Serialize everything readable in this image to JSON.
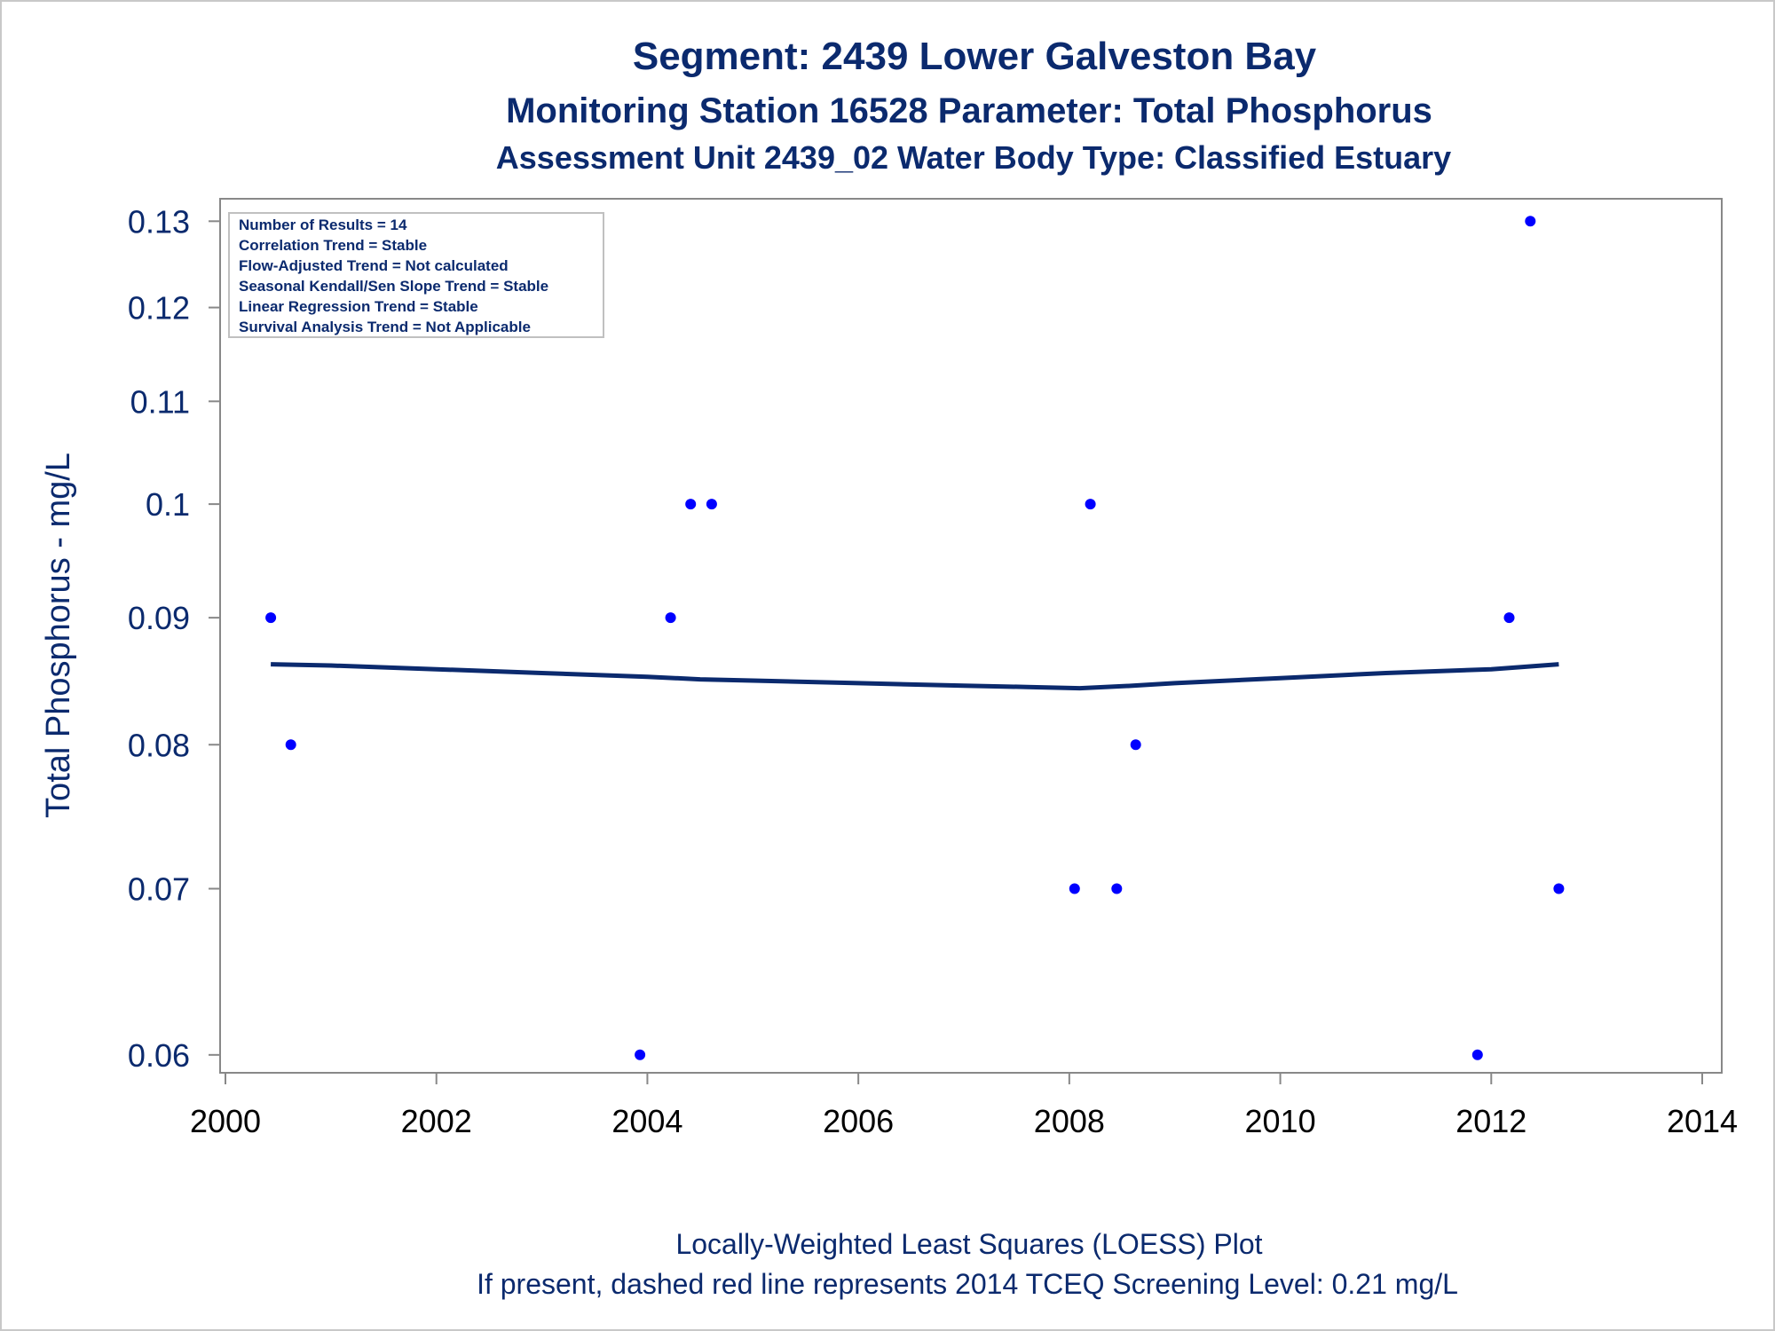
{
  "chart_data": {
    "type": "scatter",
    "title": "Segment: 2439  Lower Galveston Bay",
    "subtitle1": "Monitoring Station 16528 Parameter: Total Phosphorus",
    "subtitle2": "Assessment Unit 2439_02   Water Body Type: Classified Estuary",
    "ylabel": "Total Phosphorus - mg/L",
    "footnote1": "Locally-Weighted Least Squares (LOESS) Plot",
    "footnote2": "If present, dashed red line represents 2014 TCEQ Screening Level: 0.21 mg/L",
    "y_scale": "log",
    "xlim": [
      2000,
      2014
    ],
    "ylim": [
      0.0595,
      0.131
    ],
    "x_ticks": [
      "2000",
      "2002",
      "2004",
      "2006",
      "2008",
      "2010",
      "2012",
      "2014"
    ],
    "y_ticks": [
      "0.06",
      "0.07",
      "0.08",
      "0.09",
      "0.1",
      "0.11",
      "0.12",
      "0.13"
    ],
    "grid": false,
    "stats_box": [
      "Number of Results = 14",
      "Correlation Trend = Stable",
      "Flow-Adjusted Trend = Not calculated",
      "Seasonal Kendall/Sen Slope Trend = Stable",
      "Linear Regression Trend = Stable",
      "Survival Analysis Trend = Not Applicable"
    ],
    "series": [
      {
        "type": "scatter",
        "color": "#0000ff",
        "points": [
          {
            "x": 2000.43,
            "y": 0.09
          },
          {
            "x": 2000.62,
            "y": 0.08
          },
          {
            "x": 2003.93,
            "y": 0.06
          },
          {
            "x": 2004.22,
            "y": 0.09
          },
          {
            "x": 2004.41,
            "y": 0.1
          },
          {
            "x": 2004.61,
            "y": 0.1
          },
          {
            "x": 2008.05,
            "y": 0.07
          },
          {
            "x": 2008.2,
            "y": 0.1
          },
          {
            "x": 2008.45,
            "y": 0.07
          },
          {
            "x": 2008.63,
            "y": 0.08
          },
          {
            "x": 2011.87,
            "y": 0.06
          },
          {
            "x": 2012.17,
            "y": 0.09
          },
          {
            "x": 2012.37,
            "y": 0.13
          },
          {
            "x": 2012.64,
            "y": 0.07
          }
        ]
      },
      {
        "type": "line",
        "color": "#0b2a6e",
        "points": [
          {
            "x": 2000.43,
            "y": 0.0862
          },
          {
            "x": 2001.0,
            "y": 0.0861
          },
          {
            "x": 2002.0,
            "y": 0.0858
          },
          {
            "x": 2003.0,
            "y": 0.0855
          },
          {
            "x": 2004.0,
            "y": 0.0852
          },
          {
            "x": 2004.5,
            "y": 0.085
          },
          {
            "x": 2005.0,
            "y": 0.0849
          },
          {
            "x": 2006.0,
            "y": 0.0847
          },
          {
            "x": 2007.0,
            "y": 0.0845
          },
          {
            "x": 2007.6,
            "y": 0.0844
          },
          {
            "x": 2008.1,
            "y": 0.0843
          },
          {
            "x": 2008.6,
            "y": 0.0845
          },
          {
            "x": 2009.0,
            "y": 0.0847
          },
          {
            "x": 2010.0,
            "y": 0.0851
          },
          {
            "x": 2011.0,
            "y": 0.0855
          },
          {
            "x": 2012.0,
            "y": 0.0858
          },
          {
            "x": 2012.64,
            "y": 0.0862
          }
        ]
      }
    ]
  },
  "colors": {
    "text": "#0b2a6e",
    "axis": "#888888",
    "marker": "#0000ff",
    "loess": "#0b2a6e"
  }
}
